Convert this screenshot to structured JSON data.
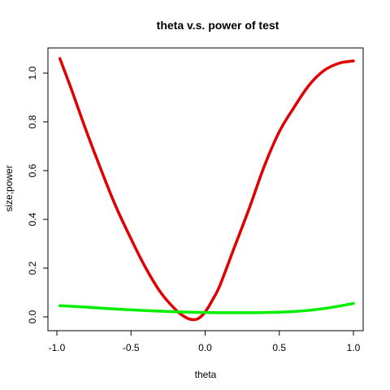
{
  "chart_data": {
    "type": "line",
    "title": "theta v.s. power of test",
    "xlabel": "theta",
    "ylabel": "size;power",
    "xlim": [
      -1.0,
      1.0
    ],
    "ylim": [
      -0.06,
      1.1
    ],
    "xticks": [
      "-1.0",
      "-0.5",
      "0.0",
      "0.5",
      "1.0"
    ],
    "yticks": [
      "0.0",
      "0.2",
      "0.4",
      "0.6",
      "0.8",
      "1.0"
    ],
    "xtick_values": [
      -1.0,
      -0.5,
      0.0,
      0.5,
      1.0
    ],
    "ytick_values": [
      0.0,
      0.2,
      0.4,
      0.6,
      0.8,
      1.0
    ],
    "grid": false,
    "series": [
      {
        "color": "#e00000",
        "x": [
          -0.98,
          -0.9,
          -0.8,
          -0.7,
          -0.6,
          -0.5,
          -0.4,
          -0.3,
          -0.2,
          -0.15,
          -0.1,
          -0.05,
          0.0,
          0.05,
          0.1,
          0.2,
          0.3,
          0.4,
          0.5,
          0.6,
          0.7,
          0.8,
          0.9,
          1.0
        ],
        "values": [
          1.06,
          0.93,
          0.76,
          0.6,
          0.45,
          0.32,
          0.2,
          0.1,
          0.03,
          0.005,
          -0.01,
          -0.008,
          0.02,
          0.07,
          0.13,
          0.29,
          0.45,
          0.62,
          0.76,
          0.86,
          0.95,
          1.01,
          1.04,
          1.05
        ]
      },
      {
        "color": "#00ee00",
        "x": [
          -0.98,
          -0.8,
          -0.6,
          -0.4,
          -0.2,
          0.0,
          0.2,
          0.4,
          0.6,
          0.8,
          1.0
        ],
        "values": [
          0.046,
          0.04,
          0.032,
          0.026,
          0.021,
          0.018,
          0.017,
          0.018,
          0.022,
          0.034,
          0.055
        ]
      }
    ]
  }
}
